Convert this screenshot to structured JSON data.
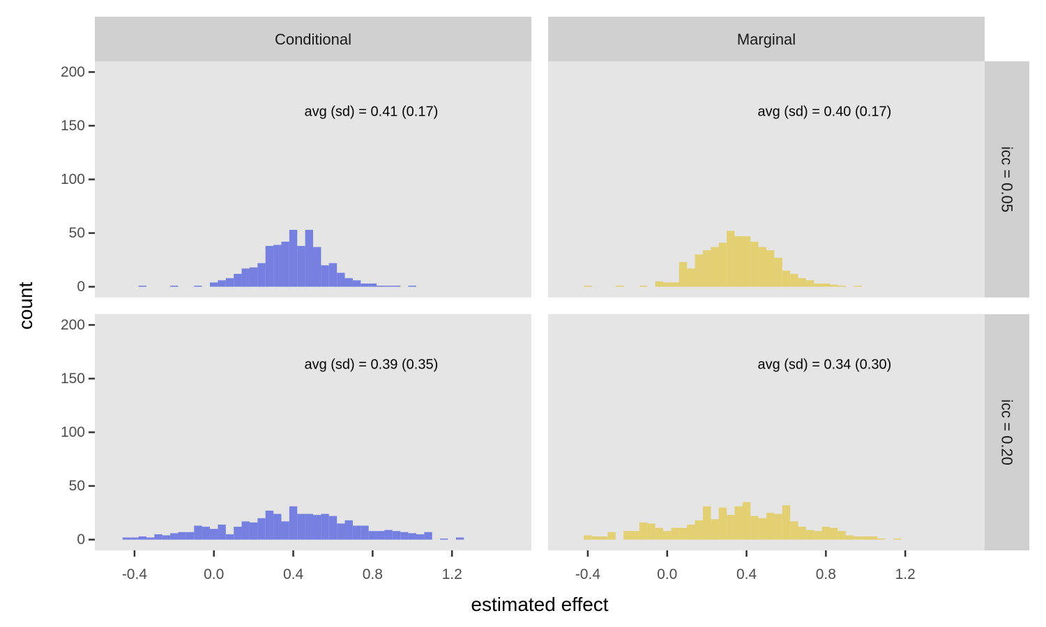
{
  "chart_data": {
    "type": "bar",
    "subtype": "faceted-histogram",
    "xlabel": "estimated effect",
    "ylabel": "count",
    "xlim": [
      -0.6,
      1.6
    ],
    "ylim": [
      -10,
      210
    ],
    "x_ticks": [
      -0.4,
      0.0,
      0.4,
      0.8,
      1.2
    ],
    "x_tick_labels": [
      "-0.4",
      "0.0",
      "0.4",
      "0.8",
      "1.2"
    ],
    "y_ticks": [
      0,
      50,
      100,
      150,
      200
    ],
    "y_tick_labels": [
      "0",
      "50",
      "100",
      "150",
      "200"
    ],
    "bin_width": 0.04,
    "grid": false,
    "background": "#e5e5e5",
    "strip_color": "#d0d0d0",
    "col_facets": [
      "Conditional",
      "Marginal"
    ],
    "row_facets": [
      "icc = 0.05",
      "icc = 0.20"
    ],
    "colors": {
      "Conditional": "#7580e0",
      "Marginal": "#e2d073"
    },
    "panels": [
      {
        "row": "icc = 0.05",
        "col": "Conditional",
        "annotation": "avg (sd) = 0.41 (0.17)",
        "x": [
          -0.36,
          -0.2,
          -0.08,
          0.0,
          0.04,
          0.08,
          0.12,
          0.16,
          0.2,
          0.24,
          0.28,
          0.32,
          0.36,
          0.4,
          0.44,
          0.48,
          0.52,
          0.56,
          0.6,
          0.64,
          0.68,
          0.72,
          0.76,
          0.8,
          0.84,
          0.88,
          0.92,
          1.0
        ],
        "values": [
          1,
          1,
          1,
          4,
          6,
          8,
          12,
          17,
          18,
          22,
          38,
          39,
          42,
          53,
          38,
          53,
          37,
          20,
          22,
          13,
          8,
          6,
          3,
          3,
          1,
          1,
          1,
          1
        ]
      },
      {
        "row": "icc = 0.05",
        "col": "Marginal",
        "annotation": "avg (sd) = 0.40 (0.17)",
        "x": [
          -0.4,
          -0.24,
          -0.12,
          -0.04,
          0.0,
          0.04,
          0.08,
          0.12,
          0.16,
          0.2,
          0.24,
          0.28,
          0.32,
          0.36,
          0.4,
          0.44,
          0.48,
          0.52,
          0.56,
          0.6,
          0.64,
          0.68,
          0.72,
          0.76,
          0.8,
          0.84,
          0.88,
          0.96
        ],
        "values": [
          1,
          1,
          1,
          5,
          4,
          4,
          23,
          17,
          30,
          34,
          37,
          41,
          52,
          47,
          47,
          42,
          37,
          34,
          27,
          15,
          12,
          8,
          6,
          3,
          3,
          2,
          1,
          1
        ]
      },
      {
        "row": "icc = 0.20",
        "col": "Conditional",
        "annotation": "avg (sd) = 0.39 (0.35)",
        "x": [
          -0.44,
          -0.4,
          -0.36,
          -0.32,
          -0.28,
          -0.24,
          -0.2,
          -0.16,
          -0.12,
          -0.08,
          -0.04,
          0.0,
          0.04,
          0.08,
          0.12,
          0.16,
          0.2,
          0.24,
          0.28,
          0.32,
          0.36,
          0.4,
          0.44,
          0.48,
          0.52,
          0.56,
          0.6,
          0.64,
          0.68,
          0.72,
          0.76,
          0.8,
          0.84,
          0.88,
          0.92,
          0.96,
          1.0,
          1.04,
          1.08,
          1.16,
          1.24
        ],
        "values": [
          2,
          2,
          3,
          2,
          5,
          4,
          6,
          7,
          7,
          13,
          12,
          10,
          14,
          5,
          12,
          17,
          16,
          20,
          27,
          24,
          17,
          31,
          24,
          24,
          23,
          24,
          22,
          15,
          18,
          13,
          13,
          8,
          8,
          9,
          8,
          7,
          6,
          5,
          7,
          1,
          2
        ]
      },
      {
        "row": "icc = 0.20",
        "col": "Marginal",
        "annotation": "avg (sd) = 0.34 (0.30)",
        "x": [
          -0.4,
          -0.36,
          -0.32,
          -0.28,
          -0.2,
          -0.16,
          -0.12,
          -0.08,
          -0.04,
          0.0,
          0.04,
          0.08,
          0.12,
          0.16,
          0.2,
          0.24,
          0.28,
          0.32,
          0.36,
          0.4,
          0.44,
          0.48,
          0.52,
          0.56,
          0.6,
          0.64,
          0.68,
          0.72,
          0.76,
          0.8,
          0.84,
          0.88,
          0.92,
          0.96,
          1.0,
          1.04,
          1.08,
          1.16
        ],
        "values": [
          4,
          3,
          3,
          7,
          8,
          8,
          16,
          15,
          11,
          8,
          11,
          11,
          14,
          18,
          31,
          19,
          30,
          23,
          31,
          35,
          22,
          20,
          25,
          24,
          32,
          17,
          12,
          9,
          8,
          12,
          11,
          8,
          4,
          3,
          3,
          3,
          1,
          1
        ]
      }
    ]
  }
}
